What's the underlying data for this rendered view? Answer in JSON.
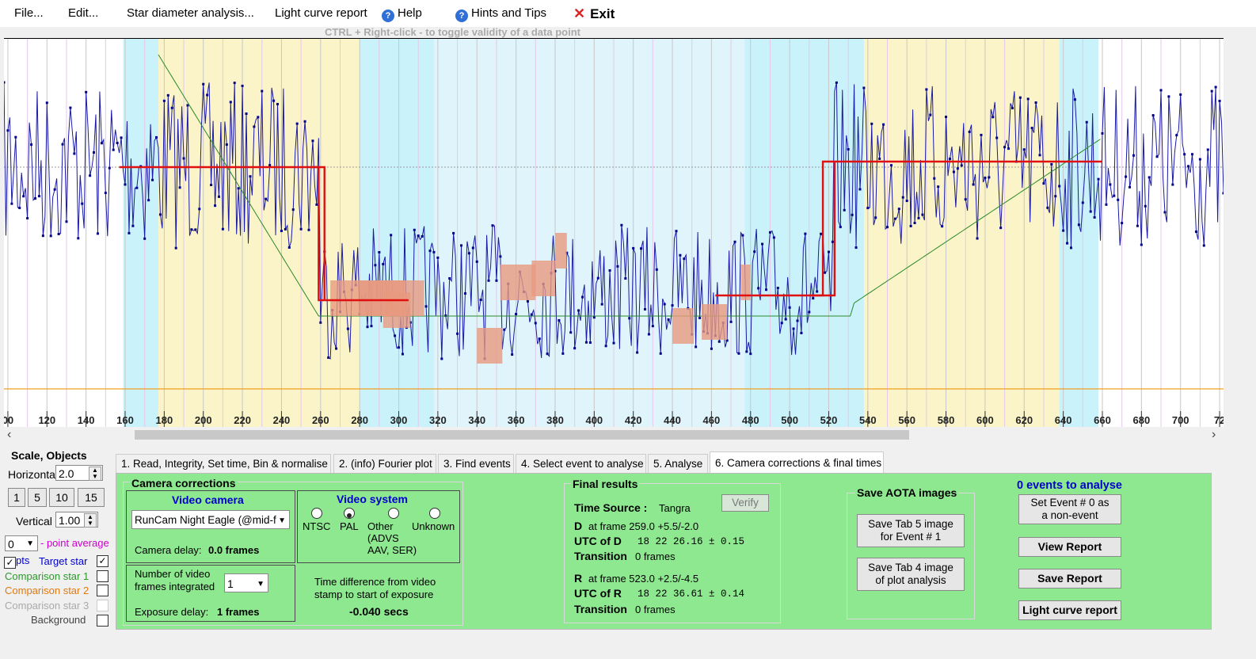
{
  "menu": {
    "file": "File...",
    "edit": "Edit...",
    "star_diameter": "Star diameter analysis...",
    "light_curve_report": "Light curve report",
    "help": "Help",
    "hints": "Hints and Tips",
    "exit": "Exit"
  },
  "hint_text": "CTRL + Right-click  -  to toggle validity of a data point",
  "chart_data": {
    "type": "line",
    "x_ticks": [
      "00",
      "120",
      "140",
      "160",
      "180",
      "200",
      "220",
      "240",
      "260",
      "280",
      "300",
      "320",
      "340",
      "360",
      "380",
      "400",
      "420",
      "440",
      "460",
      "480",
      "500",
      "520",
      "540",
      "560",
      "580",
      "600",
      "620",
      "640",
      "660",
      "680",
      "700",
      "72"
    ],
    "x_range": [
      98,
      722
    ],
    "series": [
      {
        "values_note": "",
        "event_D_frame": 259,
        "event_R_frame": 523
      }
    ],
    "bands": [
      {
        "from": 159,
        "to": 177,
        "color": "#c9f2fa"
      },
      {
        "from": 177,
        "to": 280,
        "color": "#faf4c8"
      },
      {
        "from": 280,
        "to": 318,
        "color": "#c9f2fa"
      },
      {
        "from": 318,
        "to": 477,
        "color": "#dff5fb"
      },
      {
        "from": 477,
        "to": 538,
        "color": "#c9f2fa"
      },
      {
        "from": 538,
        "to": 638,
        "color": "#faf4c8"
      },
      {
        "from": 638,
        "to": 658,
        "color": "#c9f2fa"
      }
    ]
  },
  "left": {
    "title": "Scale,  Objects",
    "horizontal_label": "Horizontal",
    "horizontal_value": "2.0",
    "buttons": [
      "1",
      "5",
      "10",
      "15"
    ],
    "vertical_label": "Vertical",
    "vertical_value": "1.00",
    "point_avg_value": "0",
    "point_avg_label": "- point average",
    "pts_label": "pts",
    "target_label": "Target star",
    "comp1_label": "Comparison star 1",
    "comp2_label": "Comparison star 2",
    "comp3_label": "Comparison star 3",
    "background_label": "Background",
    "colors": {
      "target": "#0000cc",
      "comp1": "#2a9a2a",
      "comp2": "#e07a10",
      "comp3": "#aaaaaa",
      "point_avg": "#cc00cc"
    }
  },
  "tabs": [
    "1.  Read, Integrity, Set time, Bin & normalise",
    "2. (info)  Fourier plot",
    "3. Find events",
    "4. Select event to analyse",
    "5. Analyse",
    "6. Camera corrections & final times"
  ],
  "camera": {
    "group_title": "Camera corrections",
    "video_camera_title": "Video camera",
    "camera_value": "RunCam Night Eagle (@mid-f",
    "camera_delay_label": "Camera delay:",
    "camera_delay_value": "0.0 frames",
    "video_system_title": "Video system",
    "ntsc": "NTSC",
    "pal": "PAL",
    "other": "Other\n(ADVS\nAAV, SER)",
    "unknown": "Unknown",
    "frames_integrated_label": "Number of video\nframes integrated",
    "frames_integrated_value": "1",
    "exposure_delay_label": "Exposure delay:",
    "exposure_delay_value": "1 frames",
    "timediff_label": "Time difference from video\nstamp to start of exposure",
    "timediff_value": "-0.040 secs"
  },
  "final": {
    "title": "Final results",
    "time_source_label": "Time Source :",
    "time_source_value": "Tangra",
    "verify": "Verify",
    "d_label": "D",
    "d_frame": "at frame 259.0 +5.5/-2.0",
    "utc_d_label": "UTC of D",
    "utc_d_value": "18 22 26.16 ± 0.15",
    "transition_label": "Transition",
    "transition_d": "0 frames",
    "r_label": "R",
    "r_frame": "at frame 523.0 +2.5/-4.5",
    "utc_r_label": "UTC of R",
    "utc_r_value": "18 22 36.61 ± 0.14",
    "transition_r": "0 frames"
  },
  "aota": {
    "title": "Save AOTA images",
    "tab5": "Save Tab 5 image\nfor Event # 1",
    "tab4": "Save Tab 4 image\nof plot analysis"
  },
  "right": {
    "events_title": "0 events to analyse",
    "set_event": "Set Event # 0 as\na non-event",
    "view_report": "View Report",
    "save_report": "Save Report",
    "light_curve_report": "Light curve report"
  }
}
